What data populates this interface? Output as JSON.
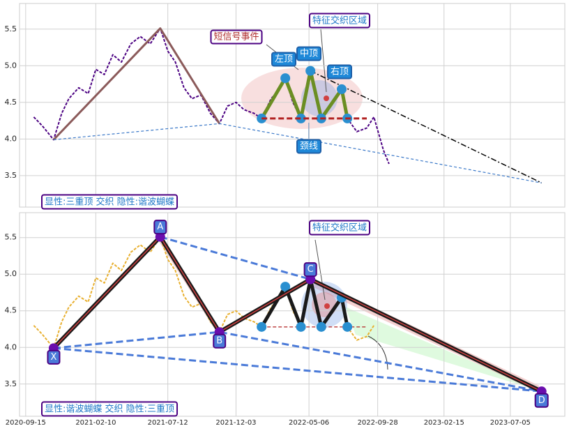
{
  "chart_data": [
    {
      "type": "line",
      "xlim": [
        "2020-09-02",
        "2023-10-28"
      ],
      "ylim": [
        3.07,
        5.85
      ],
      "yticks": [
        3.5,
        {
          "value": 4,
          "label": "4.0"
        },
        4.5,
        {
          "value": 5,
          "label": "5.0"
        },
        5.5
      ],
      "grid": true,
      "annotations": [
        "短信号事件",
        "特征交织区域",
        "左顶",
        "中顶",
        "右顶",
        "颈线",
        "显性:三重顶 交织 隐性:谐波蝴蝶"
      ],
      "series": [
        {
          "color": "#4b0082",
          "dash": "4 2",
          "width": 2,
          "x": [
            "2020-10-02",
            "2020-10-20",
            "2020-11-13",
            "2020-11-30",
            "2020-12-15",
            "2021-01-05",
            "2021-01-25",
            "2021-02-10",
            "2021-02-28",
            "2021-03-18",
            "2021-04-05",
            "2021-04-25",
            "2021-05-15",
            "2021-06-05",
            "2021-06-26",
            "2021-07-12",
            "2021-07-28",
            "2021-08-15",
            "2021-09-01",
            "2021-09-20",
            "2021-10-10",
            "2021-10-29",
            "2021-11-15",
            "2021-12-03",
            "2021-12-20",
            "2022-01-10",
            "2022-01-26",
            "2022-02-15",
            "2022-03-01",
            "2022-03-17",
            "2022-04-02",
            "2022-04-19",
            "2022-05-09",
            "2022-05-20",
            "2022-06-01",
            "2022-06-20",
            "2022-07-14",
            "2022-07-26",
            "2022-08-15",
            "2022-09-05",
            "2022-09-20",
            "2022-10-10",
            "2022-10-22"
          ],
          "values": [
            4.3,
            4.18,
            3.99,
            4.35,
            4.55,
            4.7,
            4.62,
            4.95,
            4.88,
            5.15,
            5.05,
            5.3,
            5.4,
            5.3,
            5.51,
            5.2,
            5.05,
            4.7,
            4.55,
            4.6,
            4.35,
            4.21,
            4.45,
            4.5,
            4.4,
            4.35,
            4.28,
            4.55,
            4.65,
            4.83,
            4.5,
            4.28,
            4.93,
            4.6,
            4.28,
            4.45,
            4.68,
            4.28,
            4.1,
            4.15,
            4.3,
            3.85,
            3.66
          ]
        },
        {
          "color": "#8b5a5a",
          "width": 3,
          "x": [
            "2020-11-13",
            "2021-06-26",
            "2021-10-29"
          ],
          "values": [
            3.99,
            5.51,
            4.21
          ]
        },
        {
          "color": "#3a78c8",
          "dash": "4 3",
          "width": 1.2,
          "x": [
            "2020-11-13",
            "2021-10-29",
            "2023-09-09"
          ],
          "values": [
            3.99,
            4.21,
            3.4
          ]
        },
        {
          "color": "#000000",
          "dash": "8 3 2 3",
          "width": 1.5,
          "x": [
            "2022-05-09",
            "2023-09-09"
          ],
          "values": [
            4.93,
            3.4
          ]
        },
        {
          "color": "#6b8e23",
          "width": 5,
          "marker": "#2a8fd0",
          "x": [
            "2022-01-26",
            "2022-03-17",
            "2022-04-19",
            "2022-05-09",
            "2022-06-01",
            "2022-07-14",
            "2022-07-26"
          ],
          "values": [
            4.28,
            4.83,
            4.28,
            4.93,
            4.28,
            4.68,
            4.28
          ]
        },
        {
          "color": "#b22222",
          "dash": "8 4",
          "width": 3,
          "x": [
            "2022-01-26",
            "2022-09-05"
          ],
          "values": [
            4.28,
            4.28
          ]
        }
      ]
    },
    {
      "type": "line",
      "xlim": [
        "2020-09-02",
        "2023-10-28"
      ],
      "ylim": [
        3.06,
        5.84
      ],
      "yticks": [
        3.5,
        {
          "value": 4,
          "label": "4.0"
        },
        4.5,
        {
          "value": 5,
          "label": "5.0"
        },
        5.5
      ],
      "xticks": [
        "2020-09-15",
        "2021-02-10",
        "2021-07-12",
        "2021-12-03",
        "2022-05-06",
        "2022-09-28",
        "2023-02-15",
        "2023-07-05"
      ],
      "grid": true,
      "annotations": [
        "特征交织区域",
        "显性:谐波蝴蝶 交织 隐性:三重顶"
      ],
      "series": [
        {
          "color": "#e8b030",
          "dash": "4 2",
          "width": 2,
          "x": [
            "2020-10-02",
            "2020-10-20",
            "2020-11-13",
            "2020-11-30",
            "2020-12-15",
            "2021-01-05",
            "2021-01-25",
            "2021-02-10",
            "2021-02-28",
            "2021-03-18",
            "2021-04-05",
            "2021-04-25",
            "2021-05-15",
            "2021-06-05",
            "2021-06-26",
            "2021-07-12",
            "2021-07-28",
            "2021-08-15",
            "2021-09-01",
            "2021-09-20",
            "2021-10-10",
            "2021-10-29",
            "2021-11-15",
            "2021-12-03",
            "2021-12-20",
            "2022-01-10",
            "2022-01-26",
            "2022-02-15",
            "2022-03-01",
            "2022-03-17",
            "2022-04-02",
            "2022-04-19",
            "2022-05-09",
            "2022-05-20",
            "2022-06-01",
            "2022-06-20",
            "2022-07-14",
            "2022-07-26",
            "2022-08-15",
            "2022-09-05",
            "2022-09-20"
          ],
          "values": [
            4.3,
            4.18,
            3.99,
            4.35,
            4.55,
            4.7,
            4.62,
            4.95,
            4.88,
            5.15,
            5.05,
            5.3,
            5.4,
            5.3,
            5.51,
            5.2,
            5.05,
            4.7,
            4.55,
            4.6,
            4.35,
            4.21,
            4.45,
            4.5,
            4.4,
            4.35,
            4.28,
            4.55,
            4.65,
            4.83,
            4.5,
            4.28,
            4.93,
            4.6,
            4.28,
            4.45,
            4.68,
            4.28,
            4.1,
            4.15,
            4.3
          ]
        },
        {
          "color": "#4a7ad8",
          "dash": "10 5",
          "width": 3,
          "x": [
            "2020-11-13",
            "2021-10-29",
            "2023-09-09"
          ],
          "values": [
            3.99,
            4.21,
            3.4
          ]
        },
        {
          "color": "#4a7ad8",
          "dash": "10 5",
          "width": 3,
          "x": [
            "2020-11-13",
            "2023-09-09"
          ],
          "values": [
            3.99,
            3.4
          ]
        },
        {
          "color": "#4a7ad8",
          "dash": "10 5",
          "width": 3,
          "x": [
            "2021-06-26",
            "2022-05-09"
          ],
          "values": [
            5.51,
            4.93
          ]
        },
        {
          "color": "#b22222",
          "dash": "5 3",
          "width": 1.2,
          "x": [
            "2022-01-26",
            "2022-09-05"
          ],
          "values": [
            4.28,
            4.28
          ]
        },
        {
          "color": "#1a1a1a",
          "width": 5,
          "marker": "#2a8fd0",
          "x": [
            "2022-01-26",
            "2022-03-17",
            "2022-04-19",
            "2022-05-09",
            "2022-06-01",
            "2022-07-14",
            "2022-07-26"
          ],
          "values": [
            4.28,
            4.83,
            4.28,
            4.93,
            4.28,
            4.68,
            4.28
          ]
        },
        {
          "color": "#1a1a1a",
          "inner": "#d04040",
          "width": 6,
          "marker": "#6a0dad",
          "point_labels": [
            "X",
            "A",
            "B",
            "C",
            "D"
          ],
          "x": [
            "2020-11-13",
            "2021-06-26",
            "2021-10-29",
            "2022-05-09",
            "2023-09-09"
          ],
          "values": [
            3.99,
            5.51,
            4.21,
            4.93,
            3.4
          ]
        }
      ]
    }
  ]
}
